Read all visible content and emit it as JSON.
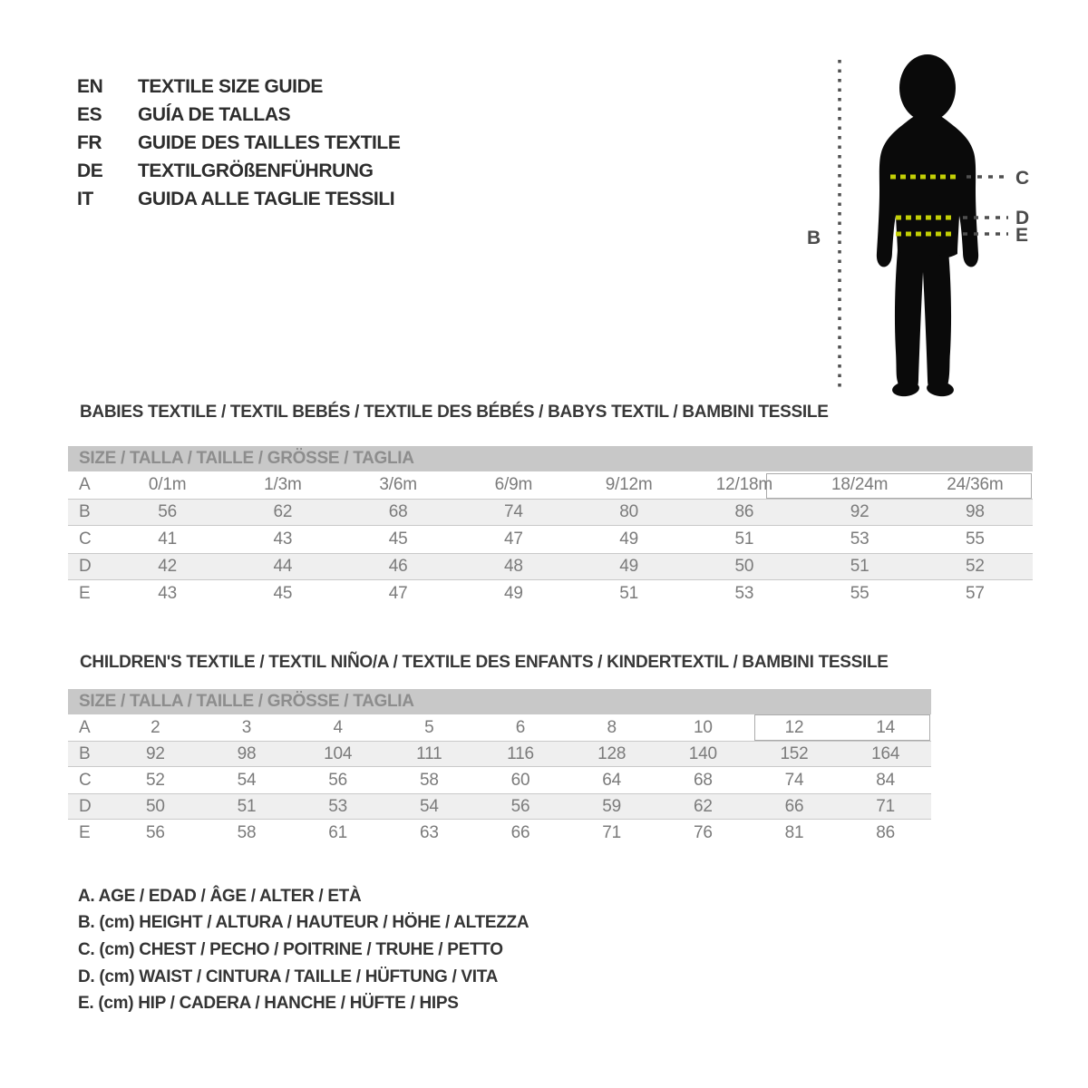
{
  "languages": [
    {
      "code": "EN",
      "label": "TEXTILE SIZE GUIDE"
    },
    {
      "code": "ES",
      "label": "GUÍA DE TALLAS"
    },
    {
      "code": "FR",
      "label": "GUIDE DES TAILLES TEXTILE"
    },
    {
      "code": "DE",
      "label": "TEXTILGRÖßENFÜHRUNG"
    },
    {
      "code": "IT",
      "label": "GUIDA ALLE TAGLIE TESSILI"
    }
  ],
  "figure": {
    "labels": {
      "height": "B",
      "chest": "C",
      "waist": "D",
      "hip": "E"
    },
    "colors": {
      "silhouette": "#0a0a0a",
      "measure_line": "#c3cf05",
      "guide_line": "#4f4f4f",
      "label_text": "#4a4a4a"
    }
  },
  "babies": {
    "title": "BABIES TEXTILE / TEXTIL BEBÉS / TEXTILE DES BÉBÉS / BABYS TEXTIL / BAMBINI TESSILE",
    "size_header": "SIZE / TALLA / TAILLE / GRÖSSE / TAGLIA",
    "rows": [
      {
        "label": "A",
        "values": [
          "0/1m",
          "1/3m",
          "3/6m",
          "6/9m",
          "9/12m",
          "12/18m",
          "18/24m",
          "24/36m"
        ]
      },
      {
        "label": "B",
        "values": [
          "56",
          "62",
          "68",
          "74",
          "80",
          "86",
          "92",
          "98"
        ]
      },
      {
        "label": "C",
        "values": [
          "41",
          "43",
          "45",
          "47",
          "49",
          "51",
          "53",
          "55"
        ]
      },
      {
        "label": "D",
        "values": [
          "42",
          "44",
          "46",
          "48",
          "49",
          "50",
          "51",
          "52"
        ]
      },
      {
        "label": "E",
        "values": [
          "43",
          "45",
          "47",
          "49",
          "51",
          "53",
          "55",
          "57"
        ]
      }
    ]
  },
  "children": {
    "title": "CHILDREN'S TEXTILE / TEXTIL NIÑO/A / TEXTILE DES ENFANTS / KINDERTEXTIL / BAMBINI TESSILE",
    "size_header": "SIZE / TALLA / TAILLE / GRÖSSE / TAGLIA",
    "rows": [
      {
        "label": "A",
        "values": [
          "2",
          "3",
          "4",
          "5",
          "6",
          "8",
          "10",
          "12",
          "14"
        ]
      },
      {
        "label": "B",
        "values": [
          "92",
          "98",
          "104",
          "111",
          "116",
          "128",
          "140",
          "152",
          "164"
        ]
      },
      {
        "label": "C",
        "values": [
          "52",
          "54",
          "56",
          "58",
          "60",
          "64",
          "68",
          "74",
          "84"
        ]
      },
      {
        "label": "D",
        "values": [
          "50",
          "51",
          "53",
          "54",
          "56",
          "59",
          "62",
          "66",
          "71"
        ]
      },
      {
        "label": "E",
        "values": [
          "56",
          "58",
          "61",
          "63",
          "66",
          "71",
          "76",
          "81",
          "86"
        ]
      }
    ]
  },
  "legend": [
    "A. AGE / EDAD / ÂGE / ALTER / ETÀ",
    "B. (cm) HEIGHT / ALTURA / HAUTEUR / HÖHE / ALTEZZA",
    "C. (cm) CHEST / PECHO / POITRINE / TRUHE / PETTO",
    "D. (cm) WAIST / CINTURA / TAILLE / HÜFTUNG / VITA",
    "E. (cm) HIP / CADERA / HANCHE / HÜFTE / HIPS"
  ]
}
